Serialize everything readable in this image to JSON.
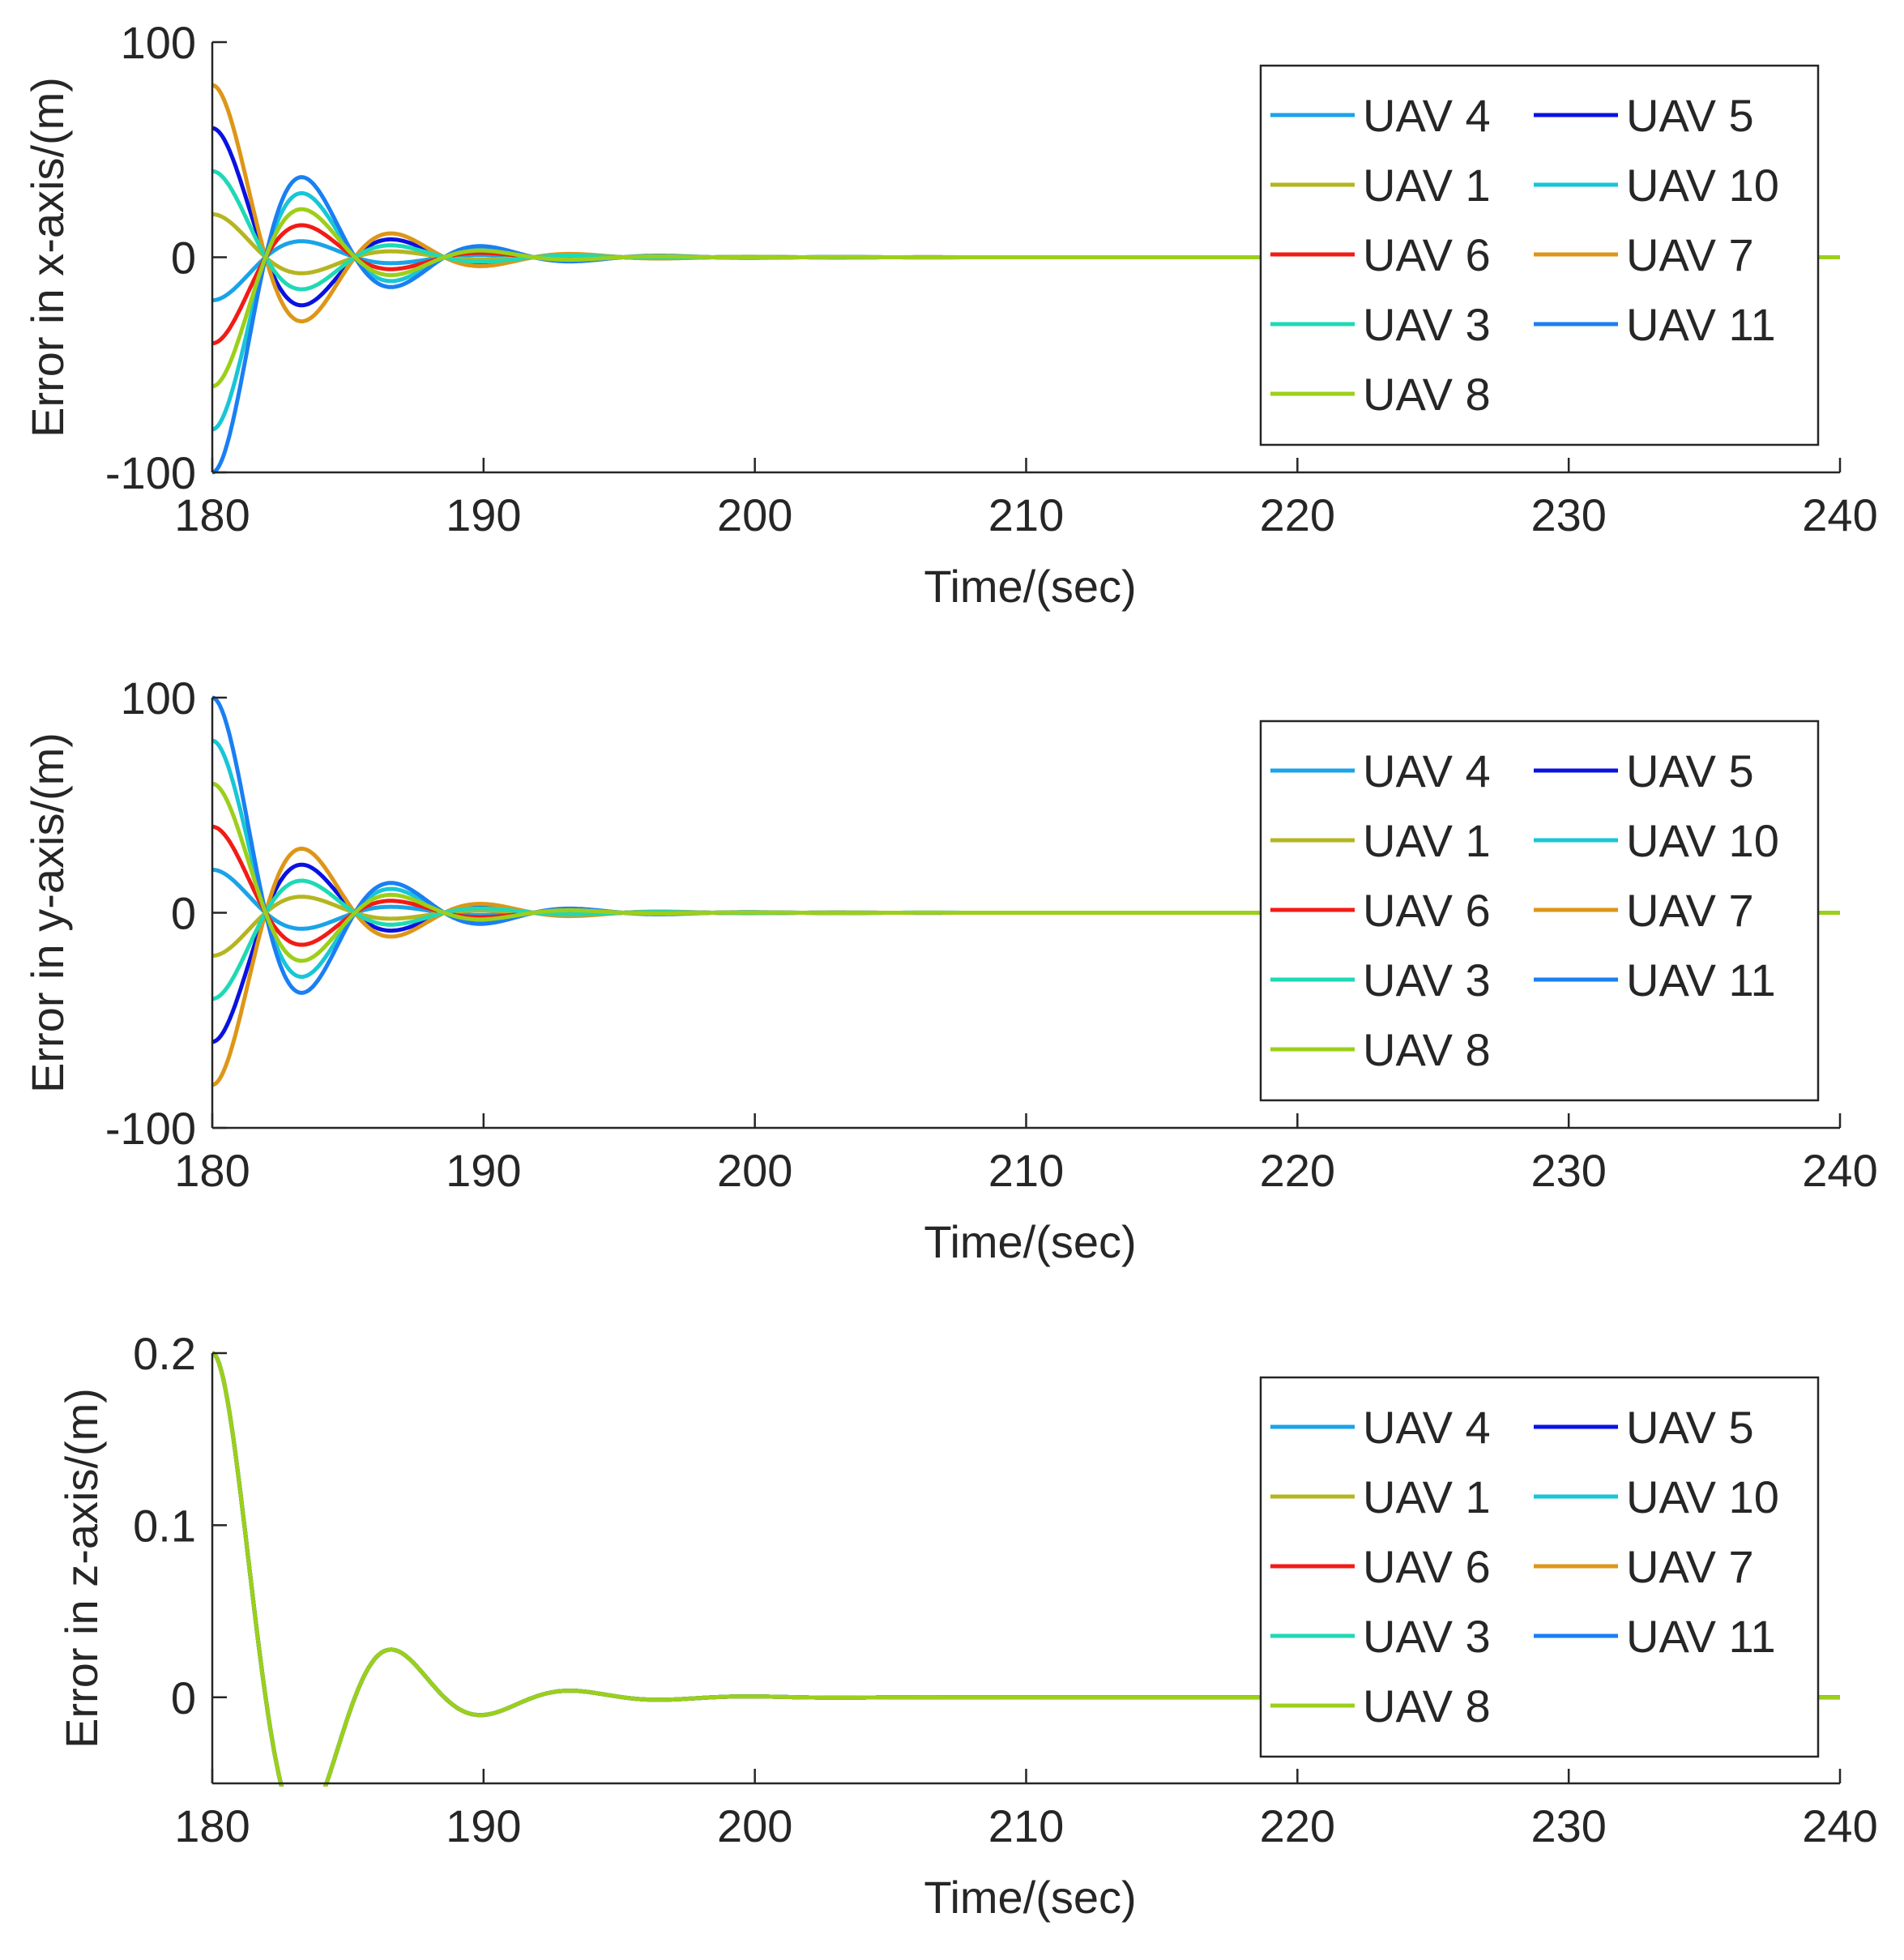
{
  "chart_data": [
    {
      "type": "line",
      "id": "x",
      "xlabel": "Time/(sec)",
      "ylabel": "Error in x-axis/(m)",
      "xlim": [
        180,
        240
      ],
      "ylim": [
        -100,
        100
      ],
      "xticks": [
        180,
        190,
        200,
        210,
        220,
        230,
        240
      ],
      "xtick_labels": [
        "180",
        "190",
        "200",
        "210",
        "220",
        "230",
        "240"
      ],
      "yticks": [
        -100,
        0,
        100
      ],
      "ytick_labels": [
        "-100",
        "0",
        "100"
      ],
      "grid": false,
      "legend_position": "top-right",
      "series": [
        {
          "name": "UAV 4",
          "color": "#1AA3E8",
          "initial_error": -20
        },
        {
          "name": "UAV 5",
          "color": "#0A12E0",
          "initial_error": 60
        },
        {
          "name": "UAV 1",
          "color": "#B5B522",
          "initial_error": 20
        },
        {
          "name": "UAV 10",
          "color": "#18C6D6",
          "initial_error": -80
        },
        {
          "name": "UAV 6",
          "color": "#F21B16",
          "initial_error": -40
        },
        {
          "name": "UAV 7",
          "color": "#DE9618",
          "initial_error": 80
        },
        {
          "name": "UAV 3",
          "color": "#1FD9B5",
          "initial_error": 40
        },
        {
          "name": "UAV 11",
          "color": "#1A7FF2",
          "initial_error": -100
        },
        {
          "name": "UAV 8",
          "color": "#9CCF1A",
          "initial_error": -60
        }
      ],
      "response": {
        "wn": 1.0,
        "zeta": 0.3,
        "t0": 180,
        "note": "all errors decay to 0 by ~t=195"
      }
    },
    {
      "type": "line",
      "id": "y",
      "xlabel": "Time/(sec)",
      "ylabel": "Error in y-axis/(m)",
      "xlim": [
        180,
        240
      ],
      "ylim": [
        -100,
        100
      ],
      "xticks": [
        180,
        190,
        200,
        210,
        220,
        230,
        240
      ],
      "xtick_labels": [
        "180",
        "190",
        "200",
        "210",
        "220",
        "230",
        "240"
      ],
      "yticks": [
        -100,
        0,
        100
      ],
      "ytick_labels": [
        "-100",
        "0",
        "100"
      ],
      "grid": false,
      "legend_position": "top-right",
      "series": [
        {
          "name": "UAV 4",
          "color": "#1AA3E8",
          "initial_error": 20
        },
        {
          "name": "UAV 5",
          "color": "#0A12E0",
          "initial_error": -60
        },
        {
          "name": "UAV 1",
          "color": "#B5B522",
          "initial_error": -20
        },
        {
          "name": "UAV 10",
          "color": "#18C6D6",
          "initial_error": 80
        },
        {
          "name": "UAV 6",
          "color": "#F21B16",
          "initial_error": 40
        },
        {
          "name": "UAV 7",
          "color": "#DE9618",
          "initial_error": -80
        },
        {
          "name": "UAV 3",
          "color": "#1FD9B5",
          "initial_error": -40
        },
        {
          "name": "UAV 11",
          "color": "#1A7FF2",
          "initial_error": 100
        },
        {
          "name": "UAV 8",
          "color": "#9CCF1A",
          "initial_error": 60
        }
      ],
      "response": {
        "wn": 1.0,
        "zeta": 0.3,
        "t0": 180,
        "note": "all errors decay to 0 by ~t=195"
      }
    },
    {
      "type": "line",
      "id": "z",
      "xlabel": "Time/(sec)",
      "ylabel": "Error in z-axis/(m)",
      "xlim": [
        180,
        240
      ],
      "ylim": [
        -0.05,
        0.2
      ],
      "xticks": [
        180,
        190,
        200,
        210,
        220,
        230,
        240
      ],
      "xtick_labels": [
        "180",
        "190",
        "200",
        "210",
        "220",
        "230",
        "240"
      ],
      "yticks": [
        0,
        0.1,
        0.2
      ],
      "ytick_labels": [
        "0",
        "0.1",
        "0.2"
      ],
      "grid": false,
      "legend_position": "top-right",
      "series": [
        {
          "name": "UAV 4",
          "color": "#1AA3E8",
          "initial_error": 0.2
        },
        {
          "name": "UAV 5",
          "color": "#0A12E0",
          "initial_error": 0.2
        },
        {
          "name": "UAV 1",
          "color": "#B5B522",
          "initial_error": 0.2
        },
        {
          "name": "UAV 10",
          "color": "#18C6D6",
          "initial_error": 0.2
        },
        {
          "name": "UAV 6",
          "color": "#F21B16",
          "initial_error": 0.2
        },
        {
          "name": "UAV 7",
          "color": "#DE9618",
          "initial_error": 0.2
        },
        {
          "name": "UAV 3",
          "color": "#1FD9B5",
          "initial_error": 0.2
        },
        {
          "name": "UAV 11",
          "color": "#1A7FF2",
          "initial_error": 0.2
        },
        {
          "name": "UAV 8",
          "color": "#9CCF1A",
          "initial_error": 0.2
        }
      ],
      "response": {
        "wn": 1.0,
        "zeta": 0.3,
        "t0": 180,
        "note": "all curves coincide; min ~-0.05 at t~183.5"
      }
    }
  ]
}
